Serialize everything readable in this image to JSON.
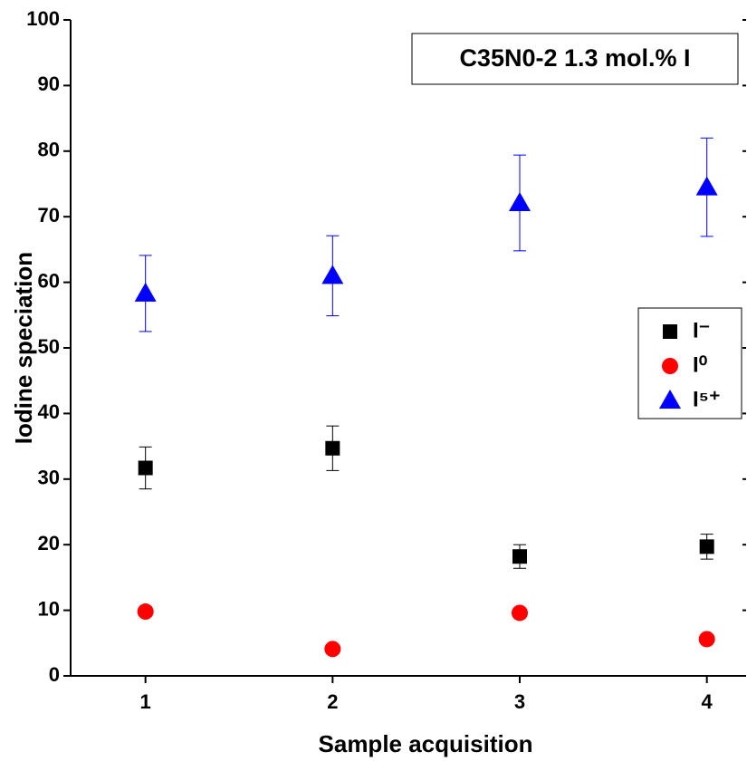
{
  "chart_data": {
    "type": "scatter",
    "xlabel": "Sample acquisition",
    "ylabel": "Iodine speciation",
    "annotation": "C35N0-2 1.3 mol.% I",
    "x": [
      1,
      2,
      3,
      4
    ],
    "xlim": [
      0.6,
      4.2
    ],
    "xticks": [
      1,
      2,
      3,
      4
    ],
    "ylim": [
      0,
      100
    ],
    "yticks": [
      0,
      10,
      20,
      30,
      40,
      50,
      60,
      70,
      80,
      90,
      100
    ],
    "legend": "right",
    "series": [
      {
        "name": "I⁻",
        "marker": "square",
        "color": "#000000",
        "values": [
          31.7,
          34.7,
          18.2,
          19.7
        ],
        "errors": [
          3.2,
          3.4,
          1.8,
          1.9
        ]
      },
      {
        "name": "I⁰",
        "marker": "circle",
        "color": "#ff0000",
        "values": [
          9.8,
          4.1,
          9.6,
          5.6
        ]
      },
      {
        "name": "I⁵⁺",
        "marker": "triangle",
        "color": "#0000ff",
        "values": [
          58.3,
          61.0,
          72.1,
          74.5
        ],
        "errors": [
          5.8,
          6.1,
          7.3,
          7.5
        ]
      }
    ]
  }
}
